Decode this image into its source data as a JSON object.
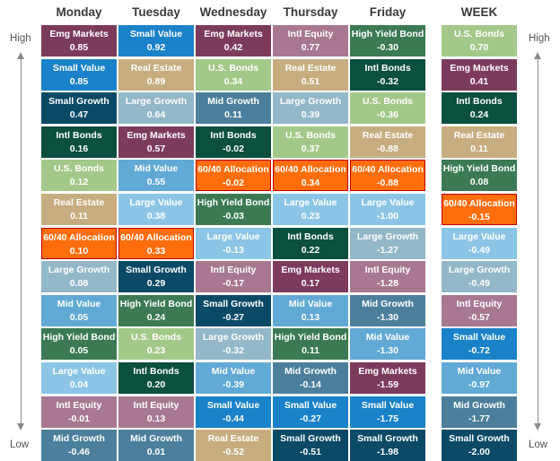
{
  "axis": {
    "high_label": "High",
    "low_label": "Low"
  },
  "colors": {
    "Emg Markets": "#7d3b5c",
    "Small Value": "#1a82c8",
    "Small Growth": "#0a4a66",
    "Intl Bonds": "#0b4f3e",
    "U.S. Bonds": "#a3c98a",
    "Real Estate": "#c8ad80",
    "60/40 Allocation": "#ff6d0d",
    "Large Growth": "#93b8c9",
    "Mid Value": "#62aad6",
    "High Yield Bond": "#3b7a54",
    "Large Value": "#8cc6e6",
    "Intl Equity": "#a87891",
    "Mid Growth": "#4c7f9c"
  },
  "chart_data": {
    "type": "table",
    "columns": [
      {
        "header": "Monday",
        "cells": [
          {
            "name": "Emg Markets",
            "value": "0.85"
          },
          {
            "name": "Small Value",
            "value": "0.85"
          },
          {
            "name": "Small Growth",
            "value": "0.47"
          },
          {
            "name": "Intl Bonds",
            "value": "0.16"
          },
          {
            "name": "U.S. Bonds",
            "value": "0.12"
          },
          {
            "name": "Real Estate",
            "value": "0.11"
          },
          {
            "name": "60/40 Allocation",
            "value": "0.10"
          },
          {
            "name": "Large Growth",
            "value": "0.08"
          },
          {
            "name": "Mid Value",
            "value": "0.05"
          },
          {
            "name": "High Yield Bond",
            "value": "0.05"
          },
          {
            "name": "Large Value",
            "value": "0.04"
          },
          {
            "name": "Intl Equity",
            "value": "-0.01"
          },
          {
            "name": "Mid Growth",
            "value": "-0.46"
          }
        ]
      },
      {
        "header": "Tuesday",
        "cells": [
          {
            "name": "Small Value",
            "value": "0.92"
          },
          {
            "name": "Real Estate",
            "value": "0.89"
          },
          {
            "name": "Large Growth",
            "value": "0.64"
          },
          {
            "name": "Emg Markets",
            "value": "0.57"
          },
          {
            "name": "Mid Value",
            "value": "0.55"
          },
          {
            "name": "Large Value",
            "value": "0.38"
          },
          {
            "name": "60/40 Allocation",
            "value": "0.33"
          },
          {
            "name": "Small Growth",
            "value": "0.29"
          },
          {
            "name": "High Yield Bond",
            "value": "0.24"
          },
          {
            "name": "U.S. Bonds",
            "value": "0.23"
          },
          {
            "name": "Intl Bonds",
            "value": "0.20"
          },
          {
            "name": "Intl Equity",
            "value": "0.13"
          },
          {
            "name": "Mid Growth",
            "value": "0.01"
          }
        ]
      },
      {
        "header": "Wednesday",
        "cells": [
          {
            "name": "Emg Markets",
            "value": "0.42"
          },
          {
            "name": "U.S. Bonds",
            "value": "0.34"
          },
          {
            "name": "Mid Growth",
            "value": "0.11"
          },
          {
            "name": "Intl Bonds",
            "value": "-0.02"
          },
          {
            "name": "60/40 Allocation",
            "value": "-0.02"
          },
          {
            "name": "High Yield Bond",
            "value": "-0.03"
          },
          {
            "name": "Large Value",
            "value": "-0.13"
          },
          {
            "name": "Intl Equity",
            "value": "-0.17"
          },
          {
            "name": "Small Growth",
            "value": "-0.27"
          },
          {
            "name": "Large Growth",
            "value": "-0.32"
          },
          {
            "name": "Mid Value",
            "value": "-0.39"
          },
          {
            "name": "Small Value",
            "value": "-0.44"
          },
          {
            "name": "Real Estate",
            "value": "-0.52"
          }
        ]
      },
      {
        "header": "Thursday",
        "cells": [
          {
            "name": "Intl Equity",
            "value": "0.77"
          },
          {
            "name": "Real Estate",
            "value": "0.51"
          },
          {
            "name": "Large Growth",
            "value": "0.39"
          },
          {
            "name": "U.S. Bonds",
            "value": "0.37"
          },
          {
            "name": "60/40 Allocation",
            "value": "0.34"
          },
          {
            "name": "Large Value",
            "value": "0.23"
          },
          {
            "name": "Intl Bonds",
            "value": "0.22"
          },
          {
            "name": "Emg Markets",
            "value": "0.17"
          },
          {
            "name": "Mid Value",
            "value": "0.13"
          },
          {
            "name": "High Yield Bond",
            "value": "0.11"
          },
          {
            "name": "Mid Growth",
            "value": "-0.14"
          },
          {
            "name": "Small Value",
            "value": "-0.27"
          },
          {
            "name": "Small Growth",
            "value": "-0.51"
          }
        ]
      },
      {
        "header": "Friday",
        "cells": [
          {
            "name": "High Yield Bond",
            "value": "-0.30"
          },
          {
            "name": "Intl Bonds",
            "value": "-0.32"
          },
          {
            "name": "U.S. Bonds",
            "value": "-0.36"
          },
          {
            "name": "Real Estate",
            "value": "-0.88"
          },
          {
            "name": "60/40 Allocation",
            "value": "-0.88"
          },
          {
            "name": "Large Value",
            "value": "-1.00"
          },
          {
            "name": "Large Growth",
            "value": "-1.27"
          },
          {
            "name": "Intl Equity",
            "value": "-1.28"
          },
          {
            "name": "Mid Growth",
            "value": "-1.30"
          },
          {
            "name": "Mid Value",
            "value": "-1.30"
          },
          {
            "name": "Emg Markets",
            "value": "-1.59"
          },
          {
            "name": "Small Value",
            "value": "-1.75"
          },
          {
            "name": "Small Growth",
            "value": "-1.98"
          }
        ]
      },
      {
        "header": "WEEK",
        "cells": [
          {
            "name": "U.S. Bonds",
            "value": "0.70"
          },
          {
            "name": "Emg Markets",
            "value": "0.41"
          },
          {
            "name": "Intl Bonds",
            "value": "0.24"
          },
          {
            "name": "Real Estate",
            "value": "0.11"
          },
          {
            "name": "High Yield Bond",
            "value": "0.08"
          },
          {
            "name": "60/40 Allocation",
            "value": "-0.15"
          },
          {
            "name": "Large Value",
            "value": "-0.49"
          },
          {
            "name": "Large Growth",
            "value": "-0.49"
          },
          {
            "name": "Intl Equity",
            "value": "-0.57"
          },
          {
            "name": "Small Value",
            "value": "-0.72"
          },
          {
            "name": "Mid Value",
            "value": "-0.97"
          },
          {
            "name": "Mid Growth",
            "value": "-1.77"
          },
          {
            "name": "Small Growth",
            "value": "-2.00"
          }
        ]
      }
    ]
  }
}
